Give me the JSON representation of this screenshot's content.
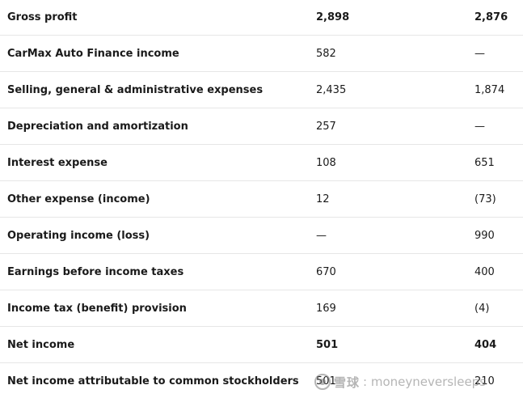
{
  "rows": [
    {
      "label": "Gross profit",
      "v1": "2,898",
      "v2": "2,876",
      "bold": true
    },
    {
      "label": "CarMax Auto Finance income",
      "v1": "582",
      "v2": "—",
      "bold": false
    },
    {
      "label": "Selling, general & administrative expenses",
      "v1": "2,435",
      "v2": "1,874",
      "bold": false
    },
    {
      "label": "Depreciation and amortization",
      "v1": "257",
      "v2": "—",
      "bold": false
    },
    {
      "label": "Interest expense",
      "v1": "108",
      "v2": "651",
      "bold": false
    },
    {
      "label": "Other expense (income)",
      "v1": "12",
      "v2": "(73)",
      "bold": false
    },
    {
      "label": "Operating income (loss)",
      "v1": "—",
      "v2": "990",
      "bold": false
    },
    {
      "label": "Earnings before income taxes",
      "v1": "670",
      "v2": "400",
      "bold": false
    },
    {
      "label": "Income tax (benefit) provision",
      "v1": "169",
      "v2": "(4)",
      "bold": false
    },
    {
      "label": "Net income",
      "v1": "501",
      "v2": "404",
      "bold": true
    },
    {
      "label": "Net income attributable to common stockholders",
      "v1": "501",
      "v2": "210",
      "bold": false
    }
  ],
  "watermark": {
    "brand": "雪球",
    "handle": ": moneyneversleeps"
  }
}
